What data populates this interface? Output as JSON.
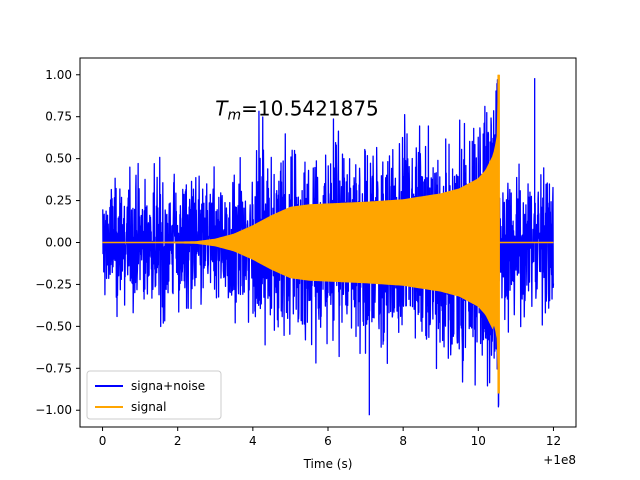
{
  "chart_data": {
    "type": "line",
    "xlabel": "Time (s)",
    "ylabel": "",
    "x_offset_label": "+1e8",
    "xlim": [
      -0.6,
      12.6
    ],
    "ylim": [
      -1.1,
      1.1
    ],
    "xticks": [
      0,
      2,
      4,
      6,
      8,
      10,
      12
    ],
    "xtick_labels": [
      "0",
      "2",
      "4",
      "6",
      "8",
      "10",
      "12"
    ],
    "yticks": [
      -1.0,
      -0.75,
      -0.5,
      -0.25,
      0.0,
      0.25,
      0.5,
      0.75,
      1.0
    ],
    "ytick_labels": [
      "−1.00",
      "−0.75",
      "−0.50",
      "−0.25",
      "0.00",
      "0.25",
      "0.50",
      "0.75",
      "1.00"
    ],
    "grid": false,
    "legend_position": "lower-left",
    "annotation": {
      "symbol": "T",
      "subscript": "m",
      "text": "=10.5421875",
      "x": 3.0,
      "y": 0.8
    },
    "series": [
      {
        "name": "signa+noise",
        "color": "#0000ff",
        "x_range": [
          0,
          12
        ],
        "noise_amplitude": 0.5,
        "peak_max": 1.0,
        "peak_min": -1.03,
        "peak_min_x": 7.1
      },
      {
        "name": "signal",
        "color": "#ffa500",
        "envelope": {
          "x": [
            0,
            1.5,
            2.5,
            3.0,
            3.5,
            4.0,
            4.5,
            5.0,
            5.5,
            6.0,
            7.0,
            8.0,
            9.0,
            9.5,
            10.0,
            10.2,
            10.4,
            10.5,
            10.5421875
          ],
          "y": [
            0,
            0,
            0.005,
            0.02,
            0.05,
            0.1,
            0.16,
            0.21,
            0.225,
            0.23,
            0.24,
            0.255,
            0.29,
            0.32,
            0.38,
            0.43,
            0.52,
            0.62,
            1.0
          ]
        },
        "post_merger_value": 0,
        "x_end": 12
      }
    ]
  }
}
